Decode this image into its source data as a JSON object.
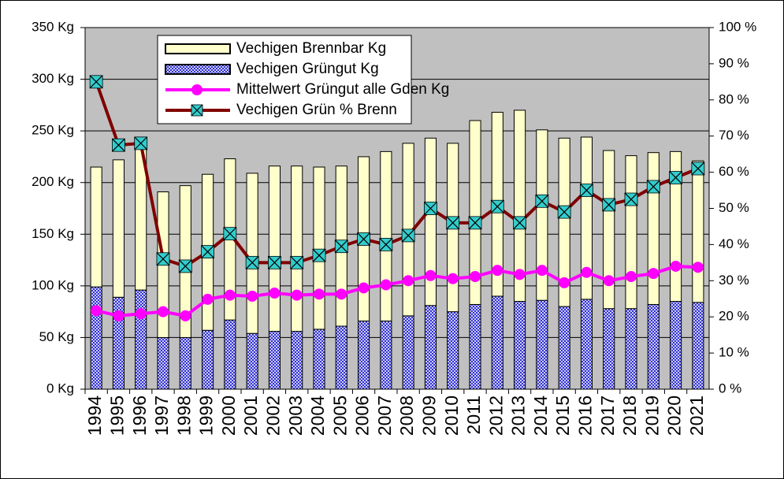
{
  "chart_data": {
    "type": "bar",
    "categories": [
      "1994",
      "1995",
      "1996",
      "1997",
      "1998",
      "1999",
      "2000",
      "2001",
      "2002",
      "2003",
      "2004",
      "2005",
      "2006",
      "2007",
      "2008",
      "2009",
      "2010",
      "2011",
      "2012",
      "2013",
      "2014",
      "2015",
      "2016",
      "2017",
      "2018",
      "2019",
      "2020",
      "2021"
    ],
    "series": [
      {
        "name": "Vechigen Brennbar Kg",
        "color": "#ffffcc",
        "stack": true,
        "values": [
          116,
          133,
          140,
          141,
          147,
          151,
          156,
          155,
          160,
          160,
          157,
          155,
          159,
          164,
          167,
          162,
          163,
          178,
          178,
          185,
          165,
          163,
          157,
          153,
          148,
          147,
          145,
          137
        ]
      },
      {
        "name": "Vechigen Grüngut Kg",
        "color": "#3333cc",
        "stack": true,
        "values": [
          99,
          89,
          96,
          50,
          50,
          57,
          67,
          54,
          56,
          56,
          58,
          61,
          66,
          66,
          71,
          81,
          75,
          82,
          90,
          85,
          86,
          80,
          87,
          78,
          78,
          82,
          85,
          84
        ]
      },
      {
        "name": "Mittelwert Grüngut alle Gden Kg",
        "color": "#ff00ff",
        "type": "line",
        "values": [
          76,
          71,
          73,
          75,
          71,
          87,
          91,
          90,
          93,
          91,
          92,
          92,
          98,
          101,
          105,
          110,
          107,
          109,
          115,
          111,
          115,
          103,
          113,
          105,
          109,
          112,
          119,
          118
        ]
      },
      {
        "name": "Vechigen Grün % Brenn",
        "color": "#800000",
        "type": "line",
        "axis": "y2",
        "values": [
          85,
          67.5,
          68,
          36,
          34,
          38,
          43,
          35,
          35,
          35,
          37,
          39.5,
          41.5,
          40,
          42.5,
          50,
          46,
          46,
          50.5,
          46,
          52,
          49,
          55,
          51,
          52.5,
          56,
          58.5,
          61
        ]
      }
    ],
    "ylim": [
      0,
      350
    ],
    "yticks": [
      {
        "value": 0,
        "label": "0 Kg"
      },
      {
        "value": 50,
        "label": "50 Kg"
      },
      {
        "value": 100,
        "label": "100 Kg"
      },
      {
        "value": 150,
        "label": "150 Kg"
      },
      {
        "value": 200,
        "label": "200 Kg"
      },
      {
        "value": 250,
        "label": "250 Kg"
      },
      {
        "value": 300,
        "label": "300 Kg"
      },
      {
        "value": 350,
        "label": "350 Kg"
      }
    ],
    "y2lim": [
      0,
      100
    ],
    "y2ticks": [
      {
        "value": 0,
        "label": "0 %"
      },
      {
        "value": 10,
        "label": "10 %"
      },
      {
        "value": 20,
        "label": "20 %"
      },
      {
        "value": 30,
        "label": "30 %"
      },
      {
        "value": 40,
        "label": "40 %"
      },
      {
        "value": 50,
        "label": "50 %"
      },
      {
        "value": 60,
        "label": "60 %"
      },
      {
        "value": 70,
        "label": "70 %"
      },
      {
        "value": 80,
        "label": "80 %"
      },
      {
        "value": 90,
        "label": "90 %"
      },
      {
        "value": 100,
        "label": "100 %"
      }
    ],
    "grid": true,
    "legend": "top-left",
    "marker_color": "#33cccc"
  }
}
